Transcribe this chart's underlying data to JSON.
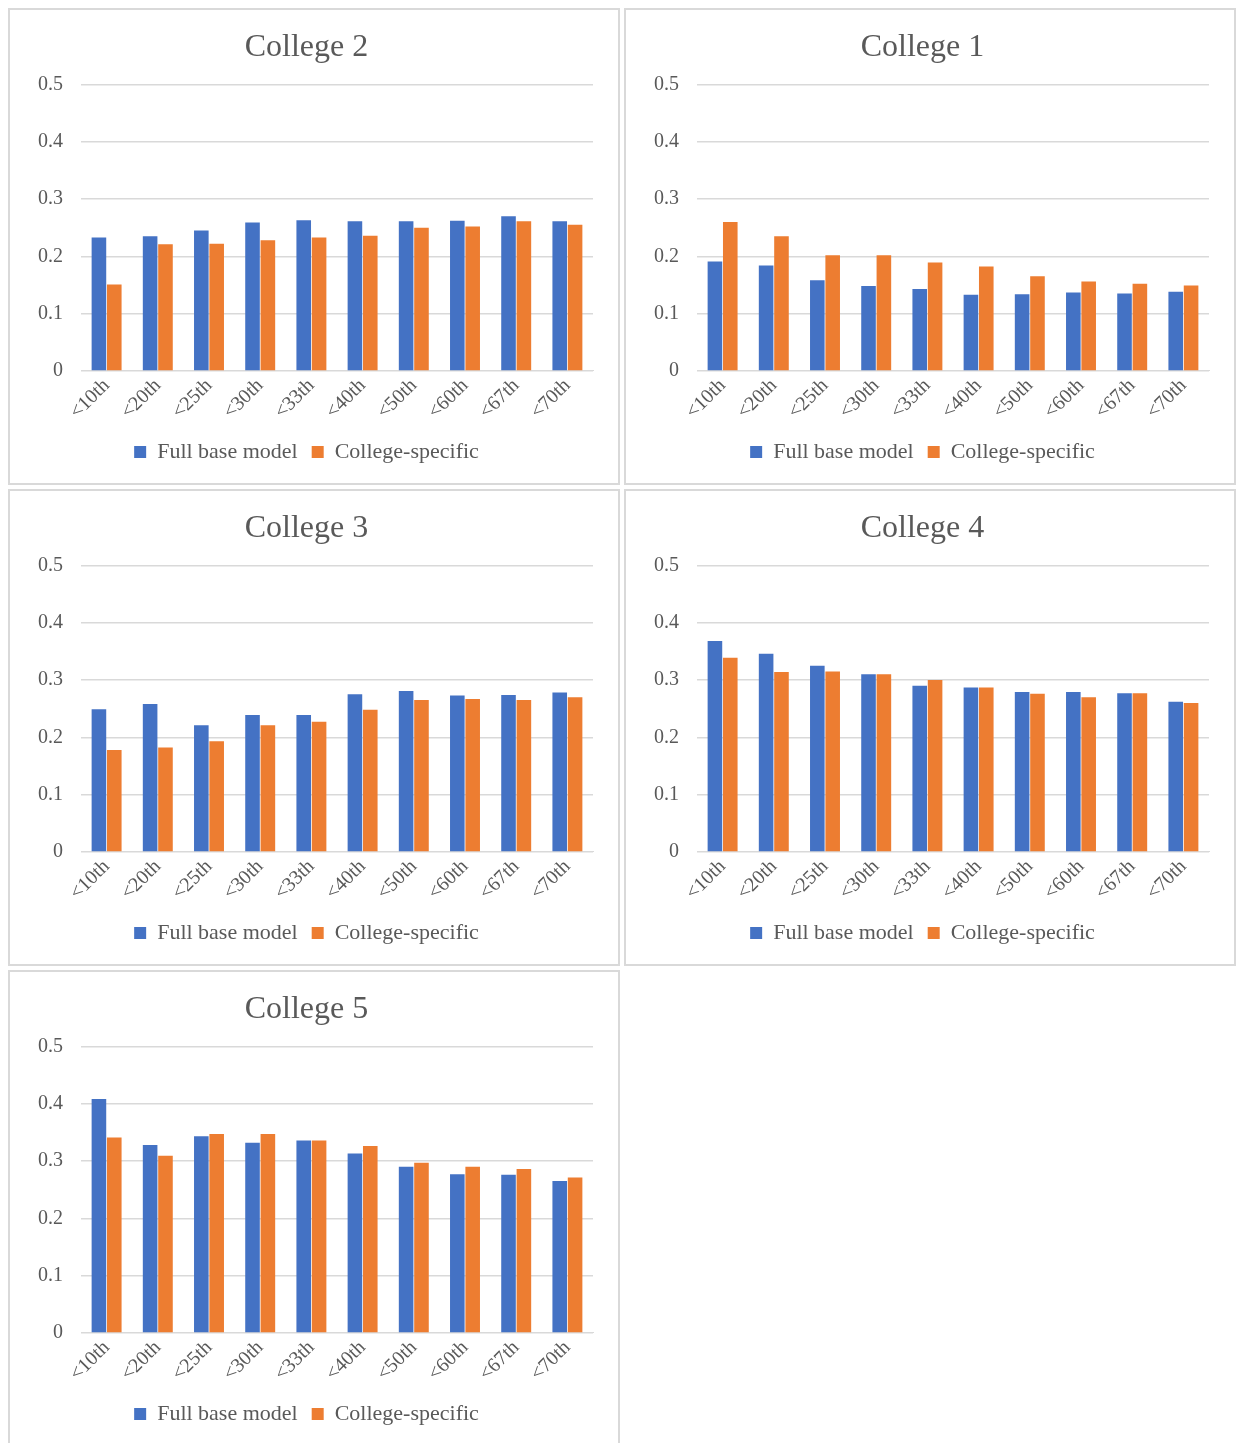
{
  "chart_data": [
    {
      "type": "bar",
      "title": "College 2",
      "categories": [
        "<10th",
        "<20th",
        "<25th",
        "<30th",
        "<33th",
        "<40th",
        "<50th",
        "<60th",
        "<67th",
        "<70th"
      ],
      "series": [
        {
          "name": "Full base model",
          "color": "#4472c4",
          "values": [
            0.233,
            0.235,
            0.245,
            0.259,
            0.263,
            0.261,
            0.261,
            0.262,
            0.27,
            0.261
          ]
        },
        {
          "name": "College-specific",
          "color": "#ed7d31",
          "values": [
            0.151,
            0.221,
            0.222,
            0.228,
            0.233,
            0.236,
            0.25,
            0.252,
            0.261,
            0.255
          ]
        }
      ],
      "ylim": [
        0,
        0.5
      ],
      "yticks": [
        0,
        0.1,
        0.2,
        0.3,
        0.4,
        0.5
      ],
      "grid": "y",
      "legend": "bottom"
    },
    {
      "type": "bar",
      "title": "College 1",
      "categories": [
        "<10th",
        "<20th",
        "<25th",
        "<30th",
        "<33th",
        "<40th",
        "<50th",
        "<60th",
        "<67th",
        "<70th"
      ],
      "series": [
        {
          "name": "Full base model",
          "color": "#4472c4",
          "values": [
            0.191,
            0.184,
            0.158,
            0.148,
            0.143,
            0.133,
            0.134,
            0.137,
            0.135,
            0.138
          ]
        },
        {
          "name": "College-specific",
          "color": "#ed7d31",
          "values": [
            0.26,
            0.235,
            0.202,
            0.202,
            0.189,
            0.182,
            0.165,
            0.156,
            0.152,
            0.149
          ]
        }
      ],
      "ylim": [
        0,
        0.5
      ],
      "yticks": [
        0,
        0.1,
        0.2,
        0.3,
        0.4,
        0.5
      ],
      "grid": "y",
      "legend": "bottom"
    },
    {
      "type": "bar",
      "title": "College 3",
      "categories": [
        "<10th",
        "<20th",
        "<25th",
        "<30th",
        "<33th",
        "<40th",
        "<50th",
        "<60th",
        "<67th",
        "<70th"
      ],
      "series": [
        {
          "name": "Full base model",
          "color": "#4472c4",
          "values": [
            0.249,
            0.258,
            0.221,
            0.239,
            0.239,
            0.275,
            0.281,
            0.273,
            0.274,
            0.278
          ]
        },
        {
          "name": "College-specific",
          "color": "#ed7d31",
          "values": [
            0.178,
            0.182,
            0.193,
            0.221,
            0.227,
            0.248,
            0.265,
            0.267,
            0.265,
            0.27
          ]
        }
      ],
      "ylim": [
        0,
        0.5
      ],
      "yticks": [
        0,
        0.1,
        0.2,
        0.3,
        0.4,
        0.5
      ],
      "grid": "y",
      "legend": "bottom"
    },
    {
      "type": "bar",
      "title": "College 4",
      "categories": [
        "<10th",
        "<20th",
        "<25th",
        "<30th",
        "<33th",
        "<40th",
        "<50th",
        "<60th",
        "<67th",
        "<70th"
      ],
      "series": [
        {
          "name": "Full base model",
          "color": "#4472c4",
          "values": [
            0.368,
            0.346,
            0.325,
            0.31,
            0.29,
            0.287,
            0.279,
            0.279,
            0.277,
            0.262
          ]
        },
        {
          "name": "College-specific",
          "color": "#ed7d31",
          "values": [
            0.339,
            0.314,
            0.315,
            0.31,
            0.3,
            0.287,
            0.276,
            0.27,
            0.277,
            0.26
          ]
        }
      ],
      "ylim": [
        0,
        0.5
      ],
      "yticks": [
        0,
        0.1,
        0.2,
        0.3,
        0.4,
        0.5
      ],
      "grid": "y",
      "legend": "bottom"
    },
    {
      "type": "bar",
      "title": "College 5",
      "categories": [
        "<10th",
        "<20th",
        "<25th",
        "<30th",
        "<33th",
        "<40th",
        "<50th",
        "<60th",
        "<67th",
        "<70th"
      ],
      "series": [
        {
          "name": "Full base model",
          "color": "#4472c4",
          "values": [
            0.408,
            0.328,
            0.343,
            0.332,
            0.336,
            0.313,
            0.29,
            0.277,
            0.276,
            0.265
          ]
        },
        {
          "name": "College-specific",
          "color": "#ed7d31",
          "values": [
            0.341,
            0.309,
            0.347,
            0.347,
            0.336,
            0.326,
            0.297,
            0.29,
            0.286,
            0.271
          ]
        }
      ],
      "ylim": [
        0,
        0.5
      ],
      "yticks": [
        0,
        0.1,
        0.2,
        0.3,
        0.4,
        0.5
      ],
      "grid": "y",
      "legend": "bottom"
    }
  ]
}
